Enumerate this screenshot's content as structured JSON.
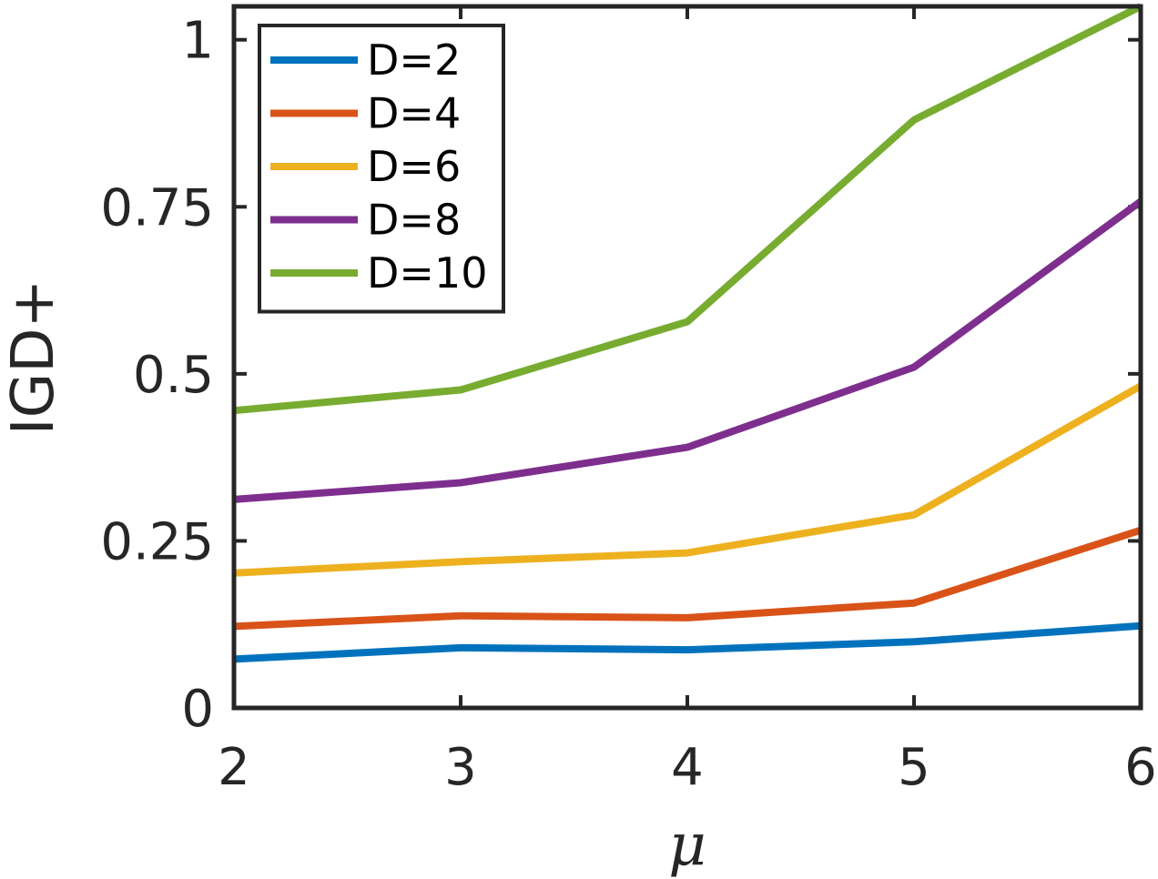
{
  "chart_data": {
    "type": "line",
    "xlabel": "μ",
    "ylabel": "IGD+",
    "xlim": [
      2,
      6
    ],
    "ylim": [
      0,
      1.05
    ],
    "xticks": [
      2,
      3,
      4,
      5,
      6
    ],
    "xtick_labels": [
      "2",
      "3",
      "4",
      "5",
      "6"
    ],
    "yticks": [
      0,
      0.25,
      0.5,
      0.75,
      1
    ],
    "ytick_labels": [
      "0",
      "0.25",
      "0.5",
      "0.75",
      "1"
    ],
    "grid": false,
    "legend_position": "top-left",
    "x": [
      2,
      3,
      4,
      5,
      6
    ],
    "series": [
      {
        "name": "D=2",
        "color": "#0072BD",
        "values": [
          0.073,
          0.09,
          0.087,
          0.099,
          0.123
        ]
      },
      {
        "name": "D=4",
        "color": "#D95319",
        "values": [
          0.122,
          0.138,
          0.135,
          0.157,
          0.266
        ]
      },
      {
        "name": "D=6",
        "color": "#EDB120",
        "values": [
          0.202,
          0.219,
          0.232,
          0.289,
          0.482
        ]
      },
      {
        "name": "D=8",
        "color": "#7E2F8E",
        "values": [
          0.312,
          0.337,
          0.39,
          0.51,
          0.758
        ]
      },
      {
        "name": "D=10",
        "color": "#77AC30",
        "values": [
          0.445,
          0.476,
          0.578,
          0.88,
          1.05
        ]
      }
    ],
    "axis_color": "#262626"
  }
}
